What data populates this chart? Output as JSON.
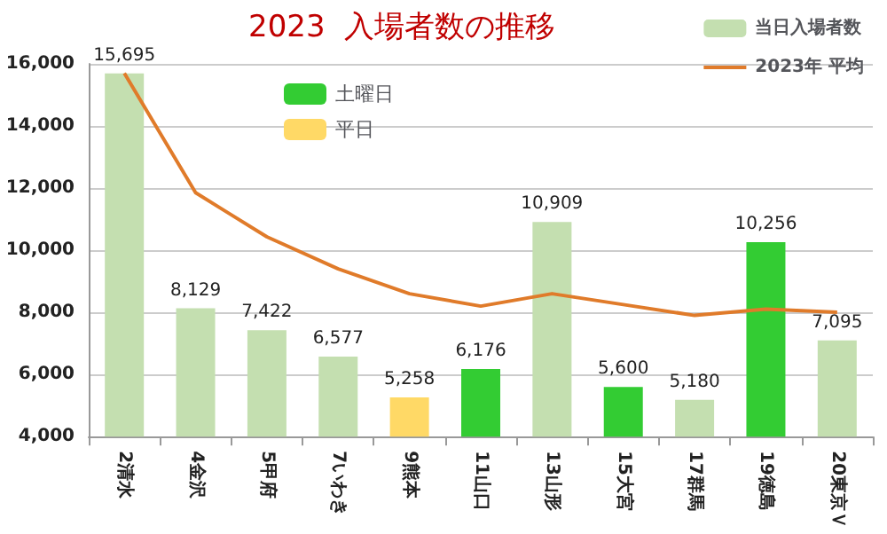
{
  "chart_data": {
    "type": "bar",
    "title": "2023  入場者数の推移",
    "categories": [
      "2清水",
      "4金沢",
      "5甲府",
      "7いわき",
      "9熊本",
      "11山口",
      "13山形",
      "15大宮",
      "17群馬",
      "19徳島",
      "20東京Ｖ"
    ],
    "series": [
      {
        "name": "当日入場者数",
        "color": "#c4dfb0",
        "values": [
          15695,
          8129,
          7422,
          6577,
          5258,
          6176,
          10909,
          5600,
          5180,
          10256,
          7095
        ],
        "colors": [
          "#c4dfb0",
          "#c4dfb0",
          "#c4dfb0",
          "#c4dfb0",
          "#ffd966",
          "#33cc33",
          "#c4dfb0",
          "#33cc33",
          "#c4dfb0",
          "#33cc33",
          "#c4dfb0"
        ],
        "value_labels": [
          "15,695",
          "8,129",
          "7,422",
          "6,577",
          "5,258",
          "6,176",
          "10,909",
          "5,600",
          "5,180",
          "10,256",
          "7,095"
        ]
      },
      {
        "name": "2023年 平均",
        "type": "line",
        "color": "#e07b2a",
        "values": [
          15700,
          11850,
          10430,
          9400,
          8600,
          8200,
          8600,
          8250,
          7900,
          8100,
          8000
        ]
      },
      {
        "name": "土曜日",
        "color": "#33cc33",
        "values": [
          null,
          null,
          null,
          null,
          null,
          null,
          null,
          null,
          null,
          null,
          null
        ]
      },
      {
        "name": "平日",
        "color": "#ffd966",
        "values": [
          null,
          null,
          null,
          null,
          null,
          null,
          null,
          null,
          null,
          null,
          null
        ]
      }
    ],
    "ylim": [
      4000,
      16000
    ],
    "yticks": [
      {
        "value": 4000,
        "label": "4,000"
      },
      {
        "value": 6000,
        "label": "6,000"
      },
      {
        "value": 8000,
        "label": "8,000"
      },
      {
        "value": 10000,
        "label": "10,000"
      },
      {
        "value": 12000,
        "label": "12,000"
      },
      {
        "value": 14000,
        "label": "14,000"
      },
      {
        "value": 16000,
        "label": "16,000"
      }
    ],
    "grid": "y",
    "legend": "top right",
    "marker": "none"
  }
}
